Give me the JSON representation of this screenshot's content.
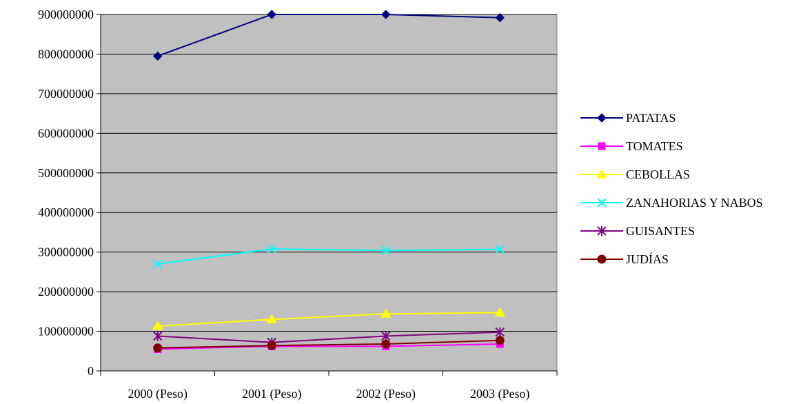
{
  "chart_data": {
    "type": "line",
    "categories": [
      "2000 (Peso)",
      "2001 (Peso)",
      "2002 (Peso)",
      "2003 (Peso)"
    ],
    "ylim": [
      0,
      900000000
    ],
    "yticks": [
      0,
      100000000,
      200000000,
      300000000,
      400000000,
      500000000,
      600000000,
      700000000,
      800000000,
      900000000
    ],
    "ytick_labels": [
      "0",
      "100000000",
      "200000000",
      "300000000",
      "400000000",
      "500000000",
      "600000000",
      "700000000",
      "800000000",
      "900000000"
    ],
    "grid": true,
    "plot_background": "#c0c0c0",
    "legend_position": "right",
    "series": [
      {
        "name": "PATATAS",
        "color": "#000080",
        "marker": "diamond",
        "values": [
          795000000,
          900000000,
          900000000,
          892000000
        ]
      },
      {
        "name": "TOMATES",
        "color": "#ff00ff",
        "marker": "square",
        "values": [
          55000000,
          62000000,
          62000000,
          68000000
        ]
      },
      {
        "name": "CEBOLLAS",
        "color": "#ffff00",
        "marker": "triangle",
        "values": [
          113000000,
          130000000,
          144000000,
          147000000
        ]
      },
      {
        "name": "ZANAHORIAS Y NABOS",
        "color": "#00ffff",
        "marker": "x",
        "values": [
          270000000,
          308000000,
          304000000,
          307000000
        ]
      },
      {
        "name": "GUISANTES",
        "color": "#800080",
        "marker": "asterisk",
        "values": [
          88000000,
          72000000,
          88000000,
          98000000
        ]
      },
      {
        "name": "JUDÍAS",
        "color": "#800000",
        "marker": "circle",
        "values": [
          58000000,
          64000000,
          68000000,
          77000000
        ]
      }
    ]
  }
}
